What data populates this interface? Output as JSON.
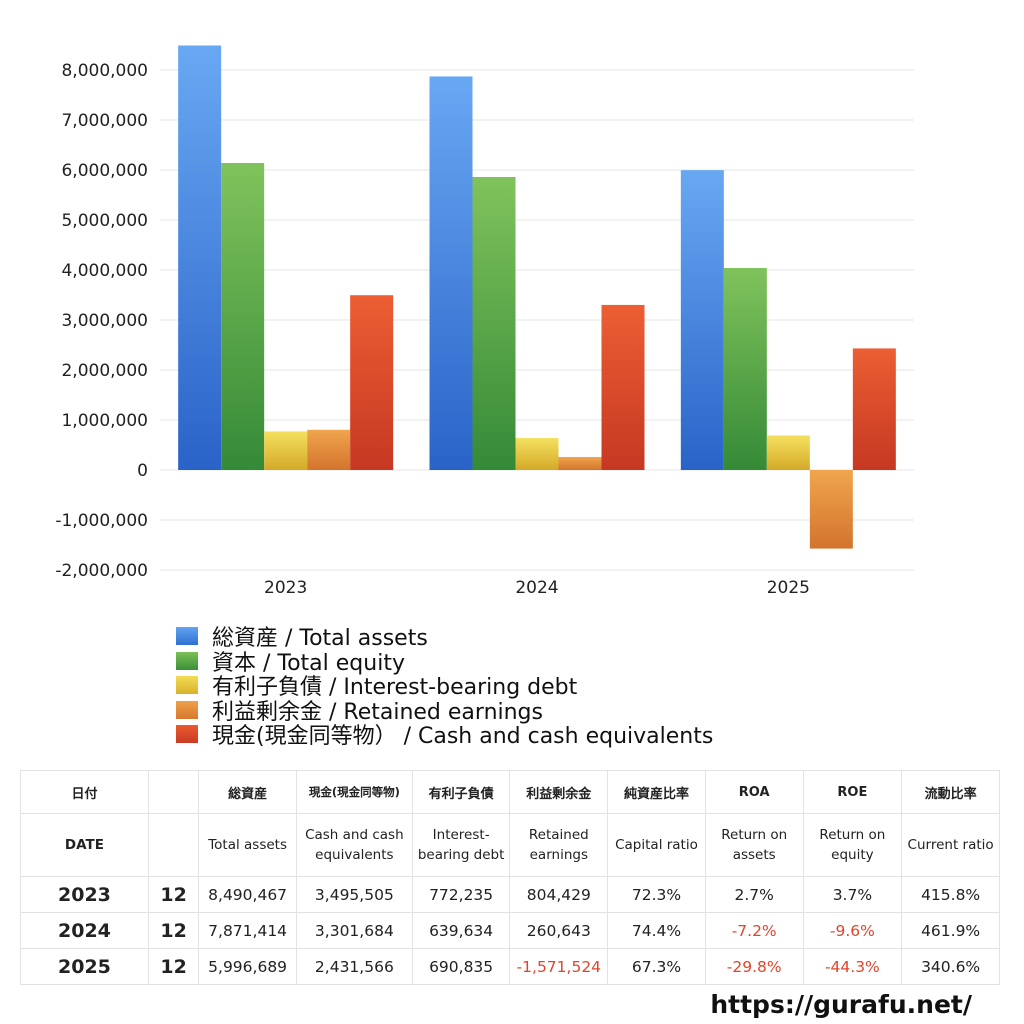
{
  "chart_data": {
    "type": "bar",
    "categories": [
      "2023",
      "2024",
      "2025"
    ],
    "series": [
      {
        "name": "総資産 / Total assets",
        "values": [
          8490467,
          7871414,
          5996689
        ],
        "color": "#3f82e0"
      },
      {
        "name": "資本 / Total equity",
        "values": [
          6140000,
          5860000,
          4040000
        ],
        "color": "#4fa64a"
      },
      {
        "name": "有利子負債 / Interest-bearing debt",
        "values": [
          772235,
          639634,
          690835
        ],
        "color": "#e6c73a"
      },
      {
        "name": "利益剰余金 / Retained earnings",
        "values": [
          804429,
          260643,
          -1571524
        ],
        "color": "#e0893a"
      },
      {
        "name": "現金(現金同等物） /  Cash and cash equivalents",
        "values": [
          3495505,
          3301684,
          2431566
        ],
        "color": "#da4a2a"
      }
    ],
    "ylim": [
      -2000000,
      8000000
    ],
    "yticks": [
      8000000,
      7000000,
      6000000,
      5000000,
      4000000,
      3000000,
      2000000,
      1000000,
      0,
      -1000000,
      -2000000
    ],
    "ytick_labels": [
      "8,000,000",
      "7,000,000",
      "6,000,000",
      "5,000,000",
      "4,000,000",
      "3,000,000",
      "2,000,000",
      "1,000,000",
      "0",
      "-1,000,000",
      "-2,000,000"
    ],
    "grid": true,
    "legend_position": "bottom"
  },
  "table": {
    "header_jp": [
      "日付",
      "",
      "総資産",
      "現金(現金同等物)",
      "有利子負債",
      "利益剰余金",
      "純資産比率",
      "ROA",
      "ROE",
      "流動比率"
    ],
    "header_en": [
      "DATE",
      "",
      "Total assets",
      "Cash and cash equivalents",
      "Interest-bearing debt",
      "Retained earnings",
      "Capital ratio",
      "Return on assets",
      "Return on equity",
      "Current ratio"
    ],
    "rows": [
      {
        "year": "2023",
        "month": "12",
        "total_assets": "8,490,467",
        "cash": "3,495,505",
        "debt": "772,235",
        "retained": "804,429",
        "capital_ratio": "72.3%",
        "roa": "2.7%",
        "roe": "3.7%",
        "current_ratio": "415.8%"
      },
      {
        "year": "2024",
        "month": "12",
        "total_assets": "7,871,414",
        "cash": "3,301,684",
        "debt": "639,634",
        "retained": "260,643",
        "capital_ratio": "74.4%",
        "roa": "-7.2%",
        "roe": "-9.6%",
        "current_ratio": "461.9%"
      },
      {
        "year": "2025",
        "month": "12",
        "total_assets": "5,996,689",
        "cash": "2,431,566",
        "debt": "690,835",
        "retained": "-1,571,524",
        "capital_ratio": "67.3%",
        "roa": "-29.8%",
        "roe": "-44.3%",
        "current_ratio": "340.6%"
      }
    ]
  },
  "footer": {
    "url": "https://gurafu.net/"
  },
  "colors": {
    "negative": "#e0452b",
    "grid": "#e6e6e6"
  }
}
